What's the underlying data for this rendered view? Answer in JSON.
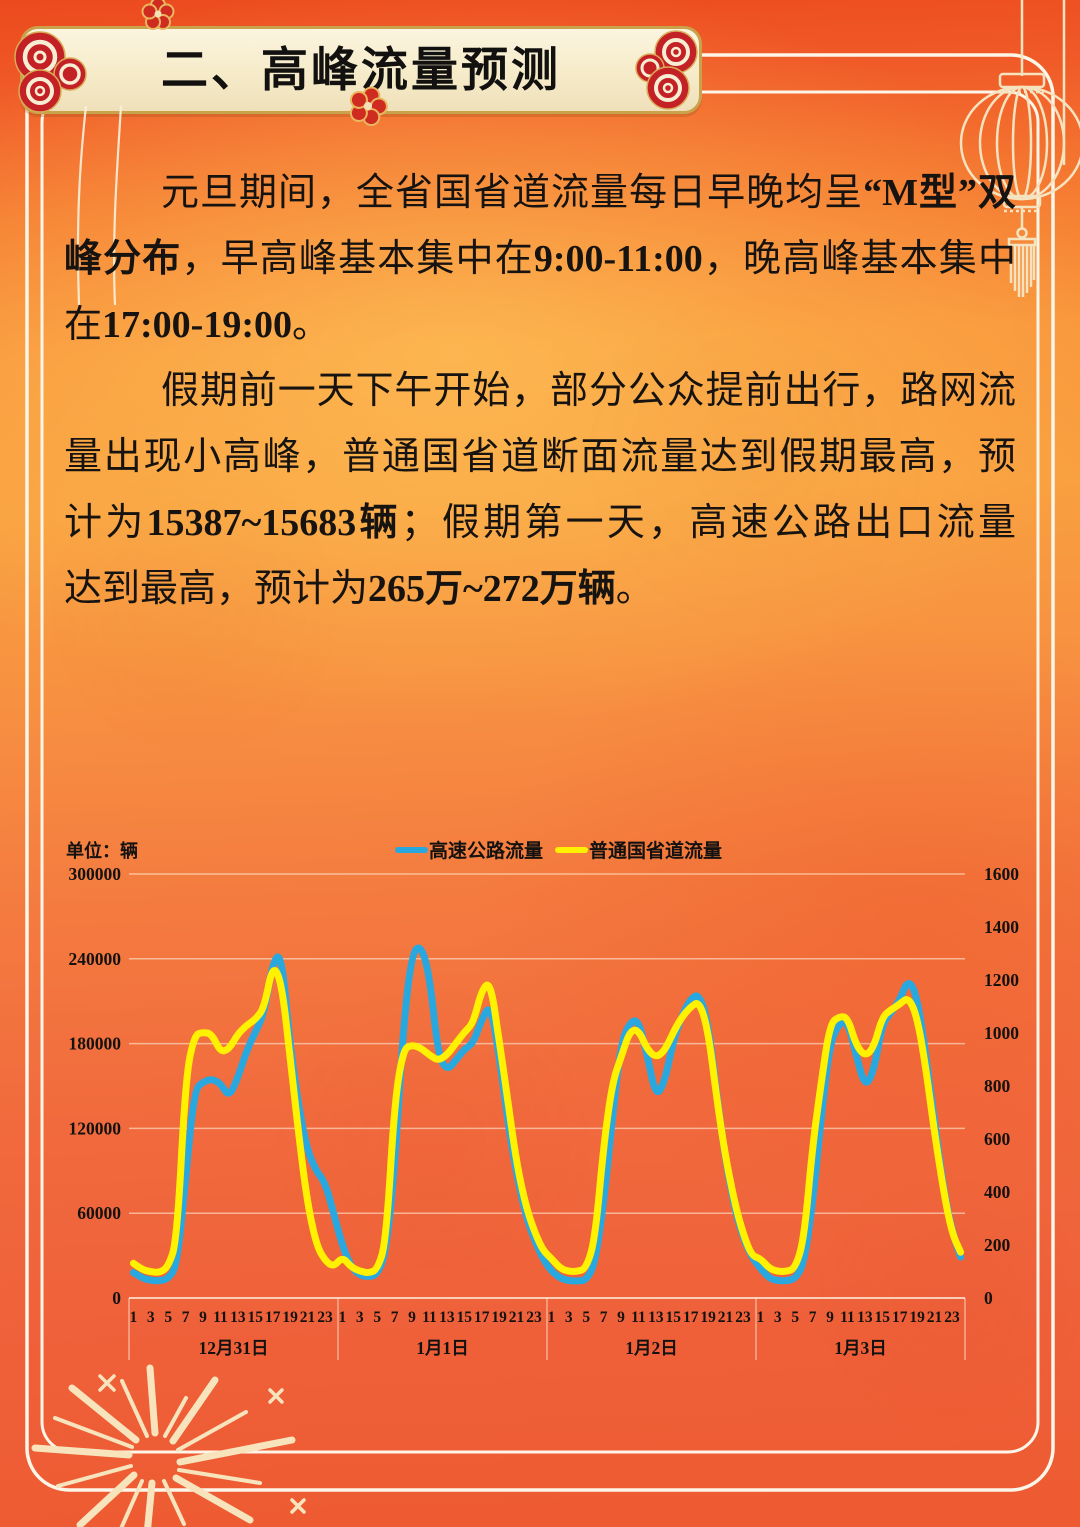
{
  "page": {
    "banner_title": "二、高峰流量预测"
  },
  "article": {
    "paragraphs": [
      {
        "lines": [
          {
            "indent": true,
            "last": false,
            "segs": [
              {
                "t": "元旦期间，全省国省道流量每日早晚均呈"
              },
              {
                "t": "“M型”双",
                "b": true
              }
            ]
          },
          {
            "indent": false,
            "last": false,
            "segs": [
              {
                "t": "峰分布",
                "b": true
              },
              {
                "t": "，早高峰基本集中在"
              },
              {
                "t": "9:00-11:00",
                "b": true
              },
              {
                "t": "，晚高峰基本集中"
              }
            ]
          },
          {
            "indent": false,
            "last": true,
            "segs": [
              {
                "t": "在"
              },
              {
                "t": "17:00-19:00",
                "b": true
              },
              {
                "t": "。"
              }
            ]
          }
        ]
      },
      {
        "lines": [
          {
            "indent": true,
            "last": false,
            "segs": [
              {
                "t": "假期前一天下午开始，部分公众提前出行，路网流"
              }
            ]
          },
          {
            "indent": false,
            "last": false,
            "segs": [
              {
                "t": "量出现小高峰，普通国省道断面流量达到假期最高，预"
              }
            ]
          },
          {
            "indent": false,
            "last": false,
            "segs": [
              {
                "t": "计为"
              },
              {
                "t": "15387~15683辆",
                "b": true
              },
              {
                "t": "；假期第一天，高速公路出口流量"
              }
            ]
          },
          {
            "indent": false,
            "last": true,
            "segs": [
              {
                "t": "达到最高，预计为"
              },
              {
                "t": "265万~272万辆",
                "b": true
              },
              {
                "t": "。"
              }
            ]
          }
        ]
      }
    ]
  },
  "chart_data": {
    "type": "line",
    "unit_label": "单位：辆",
    "legend_position": "top",
    "grid": true,
    "day_labels": [
      "12月31日",
      "1月1日",
      "1月2日",
      "1月3日"
    ],
    "hour_tick_labels": [
      "1",
      "3",
      "5",
      "7",
      "9",
      "11",
      "13",
      "15",
      "17",
      "19",
      "21",
      "23"
    ],
    "left_axis": {
      "min": 0,
      "max": 300000,
      "step": 60000,
      "tick_labels": [
        "300000",
        "240000",
        "180000",
        "120000",
        "60000",
        "0"
      ]
    },
    "right_axis": {
      "min": 0,
      "max": 1600,
      "step": 200,
      "tick_labels": [
        "1600",
        "1400",
        "1200",
        "1000",
        "800",
        "600",
        "400",
        "200",
        "0"
      ]
    },
    "colors": {
      "highway": "#29a8e0",
      "provincial": "#fff100"
    },
    "series": [
      {
        "name": "高速公路流量",
        "axis": "left",
        "color": "#29a8e0",
        "values": [
          18000,
          14000,
          12500,
          12000,
          13500,
          23000,
          84000,
          147000,
          153000,
          155000,
          152000,
          142000,
          156000,
          175000,
          188000,
          201000,
          238000,
          244000,
          178000,
          135000,
          104000,
          90000,
          82000,
          60000,
          37000,
          22000,
          16000,
          15000,
          16500,
          32000,
          92000,
          192000,
          244000,
          250000,
          229000,
          172000,
          161000,
          168000,
          176000,
          180000,
          197000,
          208000,
          172000,
          125000,
          88000,
          60000,
          42000,
          28000,
          19000,
          14000,
          12200,
          12000,
          12500,
          24000,
          67000,
          127000,
          180000,
          195000,
          197000,
          172000,
          142000,
          153000,
          182000,
          200000,
          212000,
          215000,
          194000,
          144000,
          98000,
          65000,
          43000,
          29000,
          21000,
          14000,
          12200,
          12200,
          13600,
          24000,
          67000,
          129000,
          180000,
          194000,
          196000,
          172000,
          149000,
          160000,
          194000,
          202000,
          211000,
          226000,
          213000,
          172000,
          125000,
          79000,
          48000,
          29000
        ]
      },
      {
        "name": "普通国省道流量",
        "axis": "right",
        "color": "#fff100",
        "values": [
          131,
          107,
          99,
          96,
          117,
          219,
          827,
          992,
          1003,
          997,
          928,
          939,
          997,
          1029,
          1051,
          1093,
          1259,
          1195,
          907,
          613,
          357,
          203,
          141,
          117,
          155,
          117,
          101,
          94,
          107,
          208,
          741,
          939,
          955,
          944,
          917,
          896,
          917,
          960,
          1003,
          1035,
          1163,
          1195,
          971,
          747,
          512,
          357,
          256,
          181,
          149,
          112,
          100,
          100,
          112,
          219,
          576,
          811,
          907,
          1008,
          1013,
          939,
          907,
          933,
          1003,
          1061,
          1099,
          1120,
          1008,
          752,
          533,
          368,
          245,
          160,
          149,
          112,
          100,
          100,
          112,
          219,
          576,
          816,
          1035,
          1061,
          1061,
          955,
          912,
          944,
          1061,
          1088,
          1109,
          1136,
          1061,
          869,
          624,
          411,
          245,
          173
        ]
      }
    ],
    "decorations": [
      "lantern-icon",
      "firework-icon",
      "plum-blossom-icon",
      "cloud-ornament-icon"
    ]
  }
}
